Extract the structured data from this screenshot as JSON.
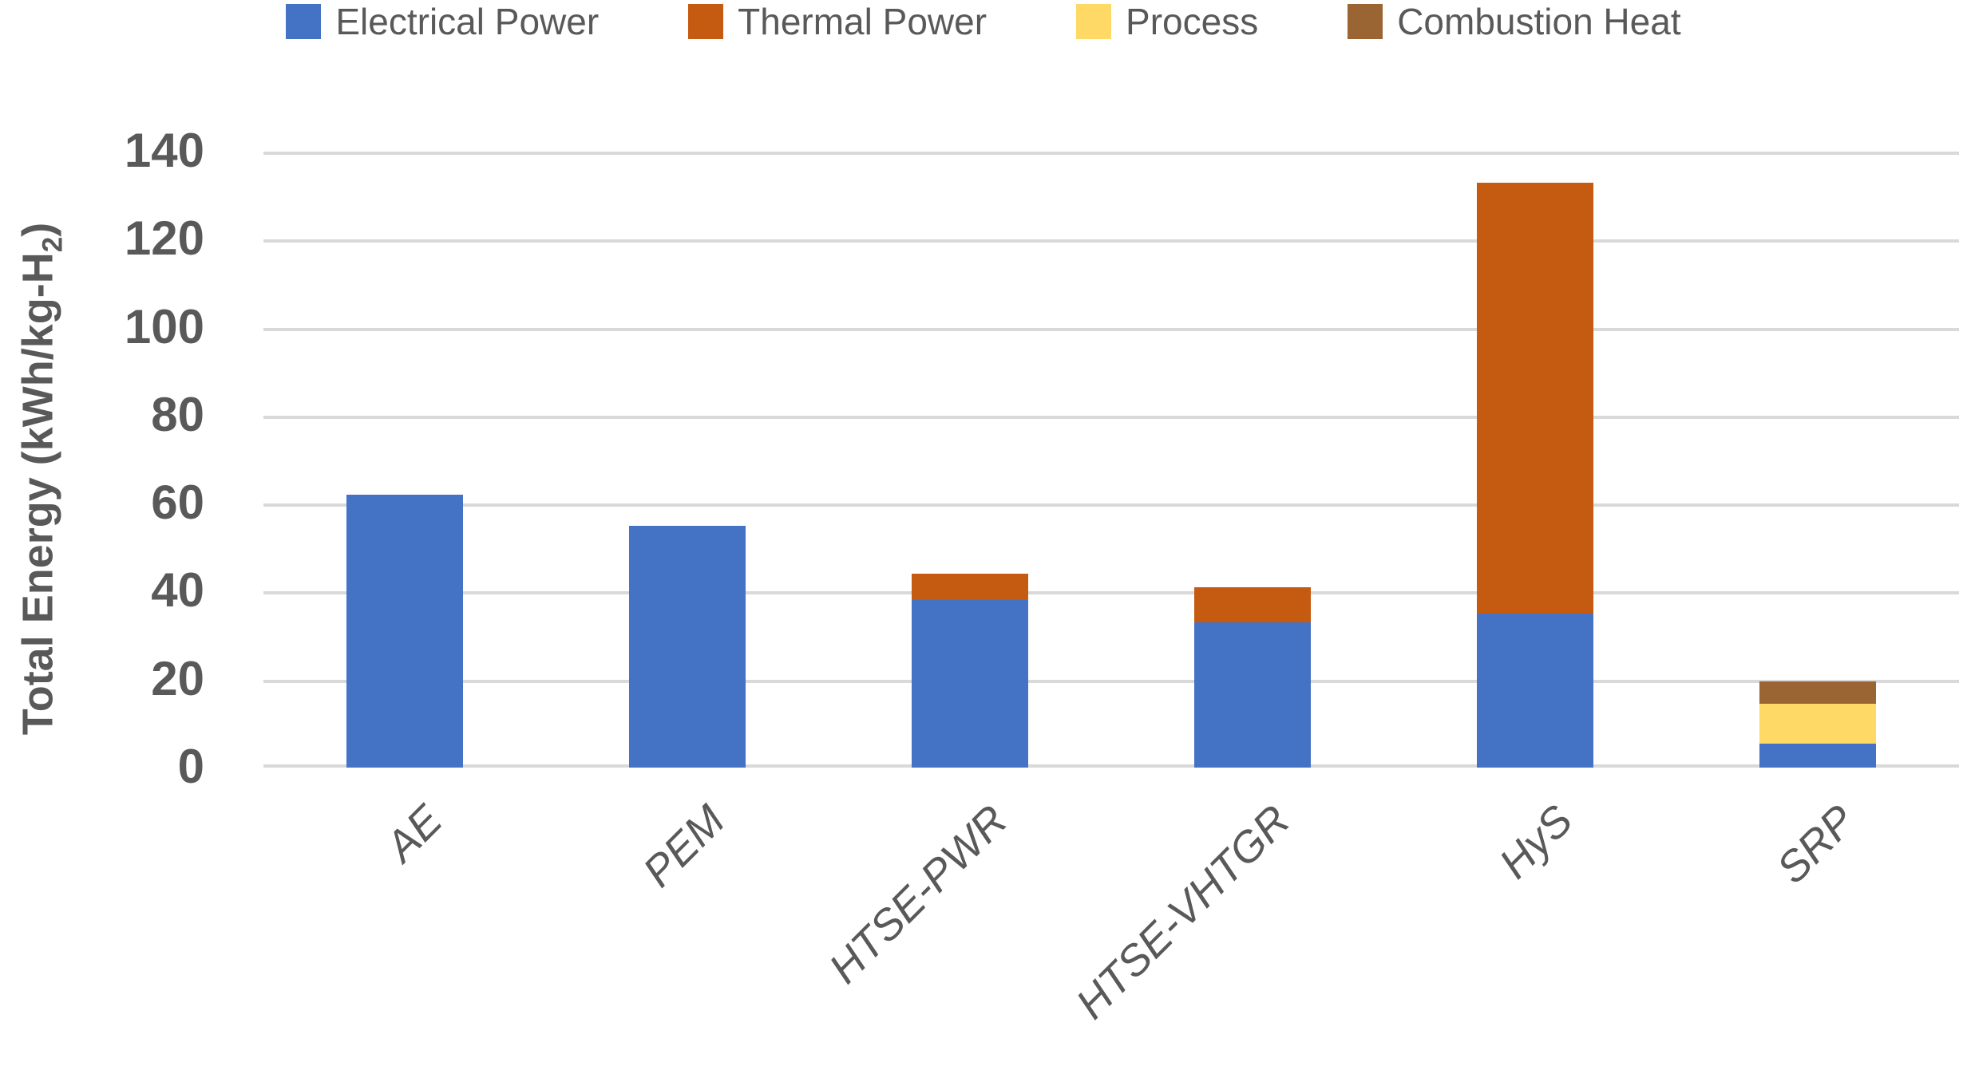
{
  "chart_data": {
    "type": "bar",
    "stacked": true,
    "categories": [
      "AE",
      "PEM",
      "HTSE-PWR",
      "HTSE-VHTGR",
      "HyS",
      "SRP"
    ],
    "series": [
      {
        "name": "Electrical Power",
        "color": "#4472C4",
        "values": [
          62,
          55,
          38,
          33,
          35,
          5.5
        ]
      },
      {
        "name": "Thermal Power",
        "color": "#C55A11",
        "values": [
          0,
          0,
          6,
          8,
          98,
          0
        ]
      },
      {
        "name": "Process",
        "color": "#FFD966",
        "values": [
          0,
          0,
          0,
          0,
          0,
          9
        ]
      },
      {
        "name": "Combustion Heat",
        "color": "#9A6433",
        "values": [
          0,
          0,
          0,
          0,
          0,
          5
        ]
      }
    ],
    "totals": [
      62,
      55,
      44,
      41,
      133,
      19.5
    ],
    "ylabel": "Total Energy (kWh/kg-H2)",
    "ylabel_parts": {
      "pre": "Total Energy (kWh/kg-H",
      "sub": "2",
      "post": ")"
    },
    "yticks": [
      0,
      20,
      40,
      60,
      80,
      100,
      120,
      140
    ],
    "ylim": [
      0,
      140
    ],
    "grid": true,
    "legend_position": "top",
    "styles": {
      "grid_color": "#D9D9D9",
      "text_color": "#595959",
      "background": "#FFFFFF"
    }
  }
}
